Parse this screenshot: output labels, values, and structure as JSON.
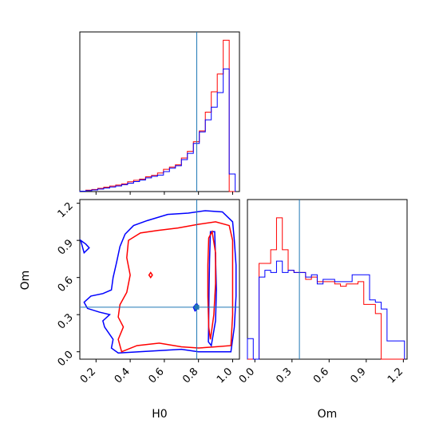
{
  "chart_data": [
    {
      "panel": "H0 marginal",
      "type": "histogram",
      "x_range": [
        0.105,
        1.04
      ],
      "truth_line": 0.79,
      "truth_color": "#1f77b4",
      "bins": [
        0.105,
        0.14,
        0.175,
        0.21,
        0.245,
        0.28,
        0.315,
        0.35,
        0.385,
        0.42,
        0.455,
        0.49,
        0.525,
        0.56,
        0.595,
        0.63,
        0.665,
        0.7,
        0.735,
        0.77,
        0.805,
        0.84,
        0.875,
        0.91,
        0.945,
        0.98,
        1.015
      ],
      "series": [
        {
          "color": "#ff0000",
          "values": [
            0.2,
            0.8,
            1.2,
            1.8,
            2.5,
            3.1,
            3.7,
            4.4,
            5.6,
            6.4,
            7.1,
            8.4,
            9.2,
            10.6,
            12.7,
            14.0,
            15.3,
            19.1,
            22.9,
            28.4,
            34.6,
            45.3,
            56.9,
            67.0,
            86.3,
            0
          ]
        },
        {
          "color": "#0000ff",
          "values": [
            0.2,
            0.5,
            0.9,
            1.4,
            2.0,
            2.6,
            3.2,
            3.9,
            4.8,
            5.7,
            6.6,
            7.8,
            8.7,
            9.4,
            11.4,
            13.3,
            14.7,
            18.2,
            21.8,
            27.4,
            34.0,
            40.9,
            48.1,
            56.4,
            69.9,
            10
          ]
        }
      ],
      "ylim": [
        0,
        91
      ]
    },
    {
      "panel": "Om marginal",
      "type": "histogram",
      "x_range": [
        -0.06,
        1.23
      ],
      "truth_line": 0.36,
      "truth_color": "#1f77b4",
      "xlabel": "Om",
      "xticks": [
        "0.0",
        "0.3",
        "0.6",
        "0.9",
        "1.2"
      ],
      "bins": [
        -0.06,
        -0.013,
        0.034,
        0.081,
        0.128,
        0.175,
        0.222,
        0.269,
        0.316,
        0.363,
        0.41,
        0.457,
        0.504,
        0.551,
        0.598,
        0.645,
        0.692,
        0.739,
        0.786,
        0.833,
        0.88,
        0.927,
        0.974,
        1.021,
        1.068,
        1.115,
        1.162,
        1.209
      ],
      "series": [
        {
          "color": "#ff0000",
          "values": [
            0,
            0,
            42,
            42,
            48,
            62,
            48,
            39,
            38,
            38,
            35,
            36,
            34,
            34,
            34,
            33,
            32,
            33,
            33,
            34,
            24,
            24,
            20,
            0,
            0,
            0,
            0
          ]
        },
        {
          "color": "#0000ff",
          "values": [
            9,
            0,
            36,
            39,
            38,
            43,
            38,
            39,
            38,
            38,
            36,
            37,
            33,
            35,
            35,
            34,
            34,
            34,
            37,
            37,
            37,
            26,
            25,
            22,
            8,
            8,
            8
          ]
        }
      ],
      "ylim": [
        0,
        70
      ]
    },
    {
      "panel": "H0 vs Om joint",
      "type": "contour",
      "xlabel": "H0",
      "ylabel": "Om",
      "xlim": [
        0.105,
        1.04
      ],
      "ylim": [
        -0.06,
        1.23
      ],
      "xticks": [
        "0.2",
        "0.4",
        "0.6",
        "0.8",
        "1.0"
      ],
      "yticks": [
        "0.0",
        "0.3",
        "0.6",
        "0.9",
        "1.2"
      ],
      "truth": {
        "H0": 0.79,
        "Om": 0.36,
        "color": "#1f77b4"
      },
      "contours": [
        {
          "color": "#0000ff",
          "outline": [
            [
              0.33,
              -0.01
            ],
            [
              0.45,
              0.0
            ],
            [
              0.58,
              0.01
            ],
            [
              0.7,
              0.02
            ],
            [
              0.8,
              0.0
            ],
            [
              0.9,
              0.0
            ],
            [
              0.99,
              0.0
            ],
            [
              1.01,
              0.2
            ],
            [
              1.02,
              0.45
            ],
            [
              1.02,
              0.7
            ],
            [
              1.01,
              0.9
            ],
            [
              1.0,
              1.05
            ],
            [
              0.94,
              1.13
            ],
            [
              0.84,
              1.14
            ],
            [
              0.74,
              1.12
            ],
            [
              0.62,
              1.11
            ],
            [
              0.5,
              1.06
            ],
            [
              0.42,
              1.02
            ],
            [
              0.37,
              0.95
            ],
            [
              0.34,
              0.85
            ],
            [
              0.32,
              0.72
            ],
            [
              0.3,
              0.6
            ],
            [
              0.29,
              0.5
            ],
            [
              0.24,
              0.47
            ],
            [
              0.17,
              0.45
            ],
            [
              0.13,
              0.4
            ],
            [
              0.15,
              0.35
            ],
            [
              0.22,
              0.32
            ],
            [
              0.28,
              0.3
            ],
            [
              0.24,
              0.25
            ],
            [
              0.25,
              0.2
            ],
            [
              0.3,
              0.1
            ],
            [
              0.29,
              0.03
            ],
            [
              0.33,
              -0.01
            ]
          ]
        },
        {
          "color": "#ff0000",
          "outline": [
            [
              0.35,
              0.0
            ],
            [
              0.44,
              0.05
            ],
            [
              0.57,
              0.07
            ],
            [
              0.7,
              0.04
            ],
            [
              0.8,
              0.03
            ],
            [
              0.9,
              0.04
            ],
            [
              0.99,
              0.05
            ],
            [
              1.0,
              0.3
            ],
            [
              1.0,
              0.6
            ],
            [
              1.0,
              0.9
            ],
            [
              0.98,
              1.02
            ],
            [
              0.9,
              1.05
            ],
            [
              0.8,
              1.03
            ],
            [
              0.68,
              1.0
            ],
            [
              0.56,
              0.98
            ],
            [
              0.46,
              0.96
            ],
            [
              0.39,
              0.9
            ],
            [
              0.38,
              0.76
            ],
            [
              0.4,
              0.62
            ],
            [
              0.38,
              0.48
            ],
            [
              0.34,
              0.38
            ],
            [
              0.33,
              0.28
            ],
            [
              0.36,
              0.2
            ],
            [
              0.33,
              0.1
            ],
            [
              0.35,
              0.0
            ]
          ]
        },
        {
          "color": "#0000ff",
          "outline": [
            [
              0.875,
              0.05
            ],
            [
              0.9,
              0.25
            ],
            [
              0.905,
              0.5
            ],
            [
              0.9,
              0.75
            ],
            [
              0.895,
              0.97
            ],
            [
              0.87,
              0.97
            ],
            [
              0.865,
              0.75
            ],
            [
              0.862,
              0.5
            ],
            [
              0.86,
              0.25
            ],
            [
              0.858,
              0.08
            ],
            [
              0.875,
              0.05
            ]
          ]
        },
        {
          "color": "#ff0000",
          "outline": [
            [
              0.87,
              0.1
            ],
            [
              0.89,
              0.3
            ],
            [
              0.9,
              0.55
            ],
            [
              0.9,
              0.8
            ],
            [
              0.88,
              0.97
            ],
            [
              0.86,
              0.92
            ],
            [
              0.855,
              0.7
            ],
            [
              0.855,
              0.45
            ],
            [
              0.86,
              0.2
            ],
            [
              0.87,
              0.1
            ]
          ]
        },
        {
          "color": "#0000ff",
          "outline": [
            [
              0.11,
              0.9
            ],
            [
              0.14,
              0.87
            ],
            [
              0.16,
              0.84
            ],
            [
              0.13,
              0.8
            ],
            [
              0.11,
              0.9
            ]
          ]
        },
        {
          "color": "#0000ff",
          "outline": [
            [
              0.78,
              0.33
            ],
            [
              0.8,
              0.36
            ],
            [
              0.79,
              0.39
            ],
            [
              0.77,
              0.36
            ],
            [
              0.78,
              0.33
            ]
          ]
        },
        {
          "color": "#ff0000",
          "outline": [
            [
              0.52,
              0.6
            ],
            [
              0.53,
              0.62
            ],
            [
              0.52,
              0.64
            ],
            [
              0.51,
              0.62
            ],
            [
              0.52,
              0.6
            ]
          ]
        }
      ]
    }
  ]
}
